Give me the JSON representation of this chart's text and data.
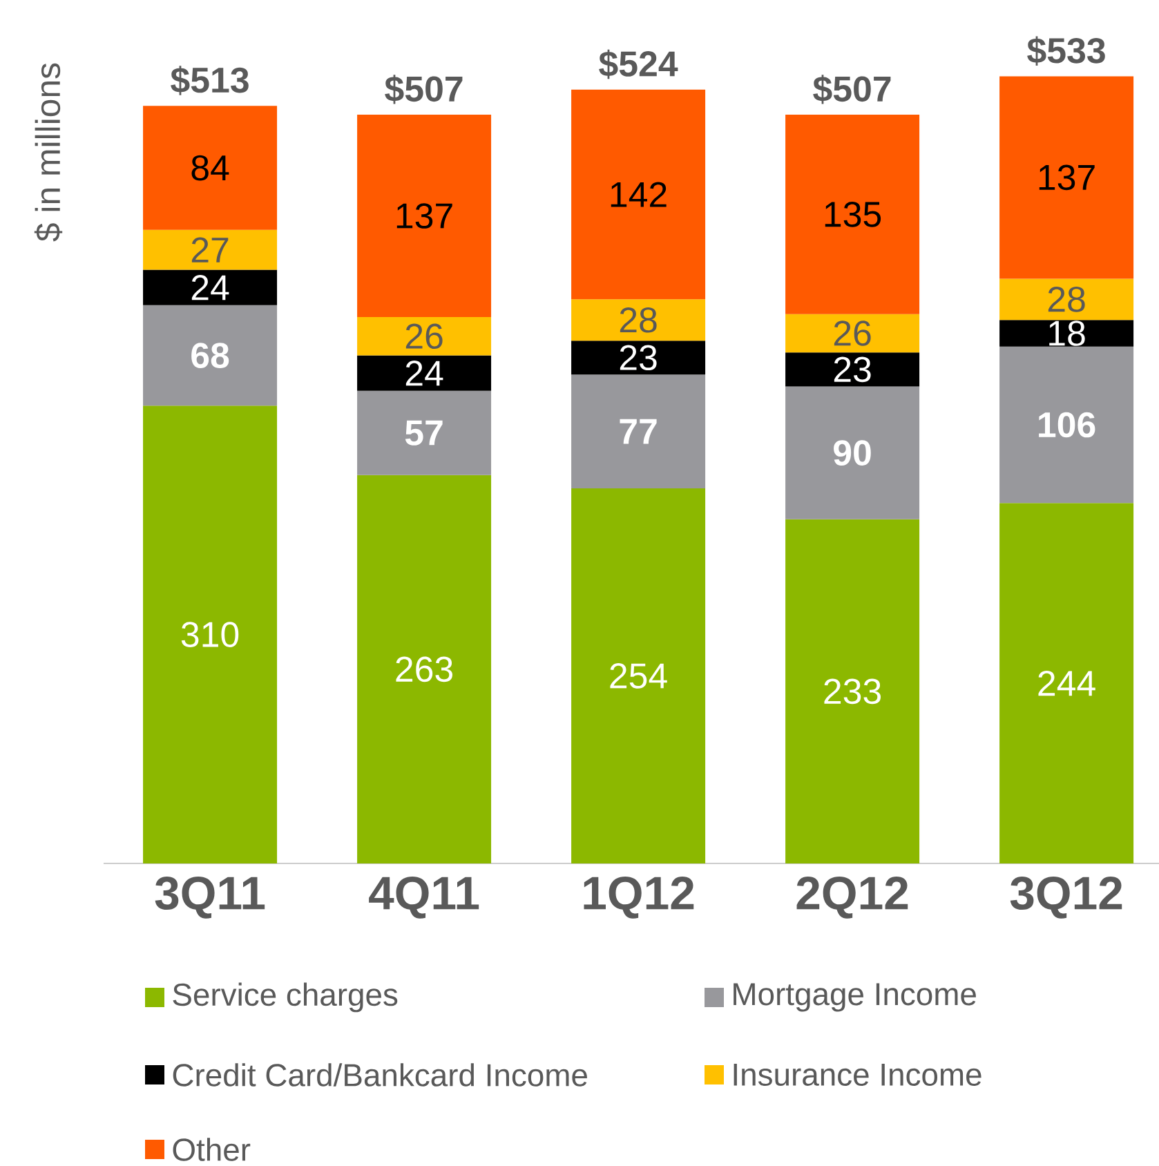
{
  "chart_data": {
    "type": "bar",
    "stacked": true,
    "ylabel": "$ in millions",
    "categories": [
      "3Q11",
      "4Q11",
      "1Q12",
      "2Q12",
      "3Q12"
    ],
    "series": [
      {
        "name": "Service charges",
        "color": "#8cb800",
        "values": [
          310,
          263,
          254,
          233,
          244
        ]
      },
      {
        "name": "Mortgage Income",
        "color": "#98989c",
        "values": [
          68,
          57,
          77,
          90,
          106
        ]
      },
      {
        "name": "Credit Card/Bankcard Income",
        "color": "#000000",
        "values": [
          24,
          24,
          23,
          23,
          18
        ]
      },
      {
        "name": "Insurance Income",
        "color": "#ffc000",
        "values": [
          27,
          26,
          28,
          26,
          28
        ]
      },
      {
        "name": "Other",
        "color": "#ff5a00",
        "values": [
          84,
          137,
          142,
          135,
          137
        ]
      }
    ],
    "data_labels": true,
    "totals": [
      "$513",
      "$507",
      "$524",
      "$507",
      "$533"
    ],
    "legend": "bottom",
    "grid": false
  }
}
